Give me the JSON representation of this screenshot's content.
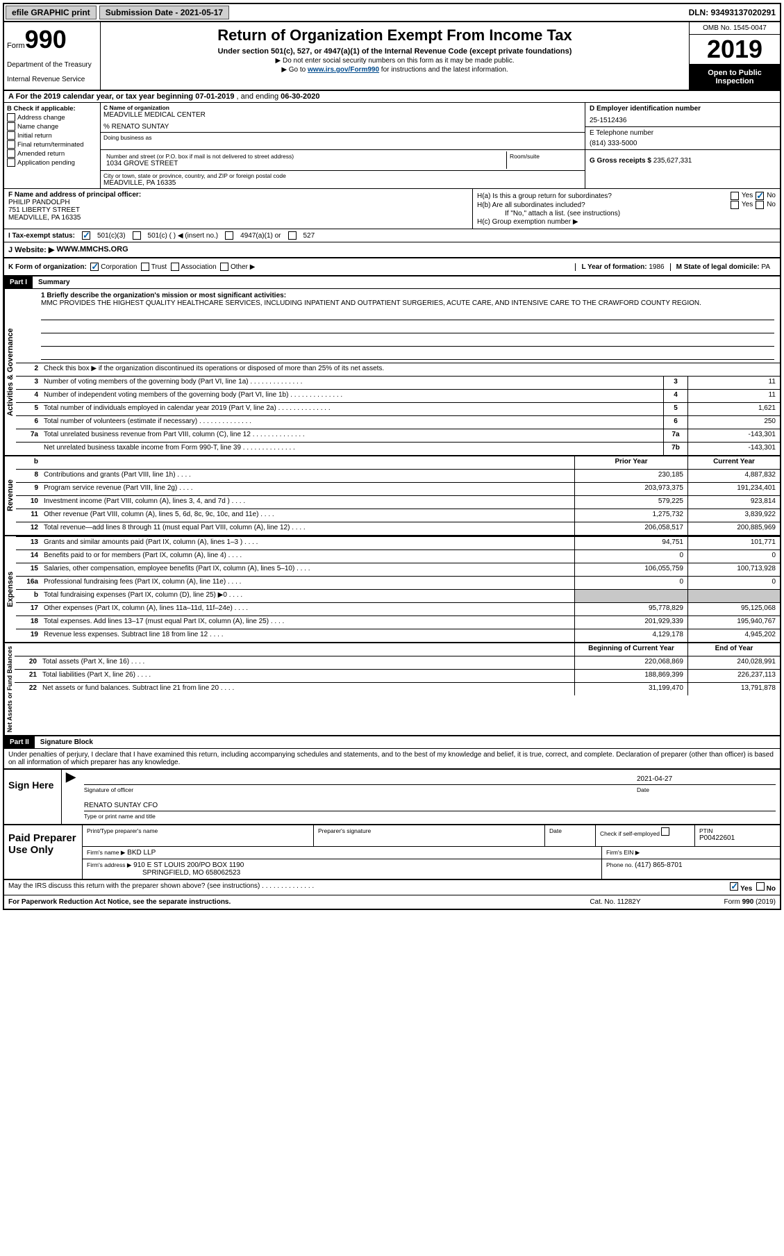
{
  "topbar": {
    "efile": "efile GRAPHIC print",
    "submission": "Submission Date - 2021-05-17",
    "dln": "DLN: 93493137020291"
  },
  "header": {
    "form_word": "Form",
    "form_num": "990",
    "dept1": "Department of the Treasury",
    "dept2": "Internal Revenue Service",
    "title": "Return of Organization Exempt From Income Tax",
    "subtitle": "Under section 501(c), 527, or 4947(a)(1) of the Internal Revenue Code (except private foundations)",
    "note1": "▶ Do not enter social security numbers on this form as it may be made public.",
    "note2_pre": "▶ Go to ",
    "note2_link": "www.irs.gov/Form990",
    "note2_post": " for instructions and the latest information.",
    "omb": "OMB No. 1545-0047",
    "year": "2019",
    "open": "Open to Public Inspection"
  },
  "rowA": {
    "label": "A For the 2019 calendar year, or tax year beginning ",
    "begin": "07-01-2019",
    "mid": " , and ending ",
    "end": "06-30-2020"
  },
  "checkB": {
    "label": "B Check if applicable:",
    "opts": [
      "Address change",
      "Name change",
      "Initial return",
      "Final return/terminated",
      "Amended return",
      "Application pending"
    ]
  },
  "sectionC": {
    "name_label": "C Name of organization",
    "name": "MEADVILLE MEDICAL CENTER",
    "care_of": "% RENATO SUNTAY",
    "dba_label": "Doing business as",
    "street_label": "Number and street (or P.O. box if mail is not delivered to street address)",
    "room_label": "Room/suite",
    "street": "1034 GROVE STREET",
    "city_label": "City or town, state or province, country, and ZIP or foreign postal code",
    "city": "MEADVILLE, PA  16335"
  },
  "sectionD": {
    "label": "D Employer identification number",
    "value": "25-1512436"
  },
  "sectionE": {
    "label": "E Telephone number",
    "value": "(814) 333-5000"
  },
  "sectionG": {
    "label": "G Gross receipts $ ",
    "value": "235,627,331"
  },
  "sectionF": {
    "label": "F  Name and address of principal officer:",
    "name": "PHILIP PANDOLPH",
    "street": "751 LIBERTY STREET",
    "city": "MEADVILLE, PA  16335"
  },
  "sectionH": {
    "a": "H(a)  Is this a group return for subordinates?",
    "b": "H(b)  Are all subordinates included?",
    "b_note": "If \"No,\" attach a list. (see instructions)",
    "c": "H(c)  Group exemption number ▶",
    "yes": "Yes",
    "no": "No"
  },
  "rowI": {
    "label": "I   Tax-exempt status:",
    "opt1": "501(c)(3)",
    "opt2": "501(c) (   ) ◀ (insert no.)",
    "opt3": "4947(a)(1) or",
    "opt4": "527"
  },
  "rowJ": {
    "label": "J   Website: ▶",
    "value": "WWW.MMCHS.ORG"
  },
  "rowK": {
    "label": "K Form of organization:",
    "opts": [
      "Corporation",
      "Trust",
      "Association",
      "Other ▶"
    ],
    "L_label": "L Year of formation: ",
    "L_val": "1986",
    "M_label": "M State of legal domicile: ",
    "M_val": "PA"
  },
  "part1": {
    "num": "Part I",
    "title": "Summary"
  },
  "mission": {
    "label": "1  Briefly describe the organization's mission or most significant activities:",
    "text": "MMC PROVIDES THE HIGHEST QUALITY HEALTHCARE SERVICES, INCLUDING INPATIENT AND OUTPATIENT SURGERIES, ACUTE CARE, AND INTENSIVE CARE TO THE CRAWFORD COUNTY REGION."
  },
  "line2": "Check this box ▶      if the organization discontinued its operations or disposed of more than 25% of its net assets.",
  "gov_lines": [
    {
      "n": "3",
      "d": "Number of voting members of the governing body (Part VI, line 1a)",
      "b": "3",
      "v": "11"
    },
    {
      "n": "4",
      "d": "Number of independent voting members of the governing body (Part VI, line 1b)",
      "b": "4",
      "v": "11"
    },
    {
      "n": "5",
      "d": "Total number of individuals employed in calendar year 2019 (Part V, line 2a)",
      "b": "5",
      "v": "1,621"
    },
    {
      "n": "6",
      "d": "Total number of volunteers (estimate if necessary)",
      "b": "6",
      "v": "250"
    },
    {
      "n": "7a",
      "d": "Total unrelated business revenue from Part VIII, column (C), line 12",
      "b": "7a",
      "v": "-143,301"
    },
    {
      "n": "",
      "d": "Net unrelated business taxable income from Form 990-T, line 39",
      "b": "7b",
      "v": "-143,301"
    }
  ],
  "col_headers": {
    "prior": "Prior Year",
    "current": "Current Year",
    "begin": "Beginning of Current Year",
    "end": "End of Year"
  },
  "rev_lines": [
    {
      "n": "8",
      "d": "Contributions and grants (Part VIII, line 1h)",
      "p": "230,185",
      "c": "4,887,832"
    },
    {
      "n": "9",
      "d": "Program service revenue (Part VIII, line 2g)",
      "p": "203,973,375",
      "c": "191,234,401"
    },
    {
      "n": "10",
      "d": "Investment income (Part VIII, column (A), lines 3, 4, and 7d )",
      "p": "579,225",
      "c": "923,814"
    },
    {
      "n": "11",
      "d": "Other revenue (Part VIII, column (A), lines 5, 6d, 8c, 9c, 10c, and 11e)",
      "p": "1,275,732",
      "c": "3,839,922"
    },
    {
      "n": "12",
      "d": "Total revenue—add lines 8 through 11 (must equal Part VIII, column (A), line 12)",
      "p": "206,058,517",
      "c": "200,885,969"
    }
  ],
  "exp_lines": [
    {
      "n": "13",
      "d": "Grants and similar amounts paid (Part IX, column (A), lines 1–3 )",
      "p": "94,751",
      "c": "101,771"
    },
    {
      "n": "14",
      "d": "Benefits paid to or for members (Part IX, column (A), line 4)",
      "p": "0",
      "c": "0"
    },
    {
      "n": "15",
      "d": "Salaries, other compensation, employee benefits (Part IX, column (A), lines 5–10)",
      "p": "106,055,759",
      "c": "100,713,928"
    },
    {
      "n": "16a",
      "d": "Professional fundraising fees (Part IX, column (A), line 11e)",
      "p": "0",
      "c": "0"
    },
    {
      "n": "b",
      "d": "Total fundraising expenses (Part IX, column (D), line 25) ▶0",
      "p": "",
      "c": "",
      "gray": true
    },
    {
      "n": "17",
      "d": "Other expenses (Part IX, column (A), lines 11a–11d, 11f–24e)",
      "p": "95,778,829",
      "c": "95,125,068"
    },
    {
      "n": "18",
      "d": "Total expenses. Add lines 13–17 (must equal Part IX, column (A), line 25)",
      "p": "201,929,339",
      "c": "195,940,767"
    },
    {
      "n": "19",
      "d": "Revenue less expenses. Subtract line 18 from line 12",
      "p": "4,129,178",
      "c": "4,945,202"
    }
  ],
  "net_lines": [
    {
      "n": "20",
      "d": "Total assets (Part X, line 16)",
      "p": "220,068,869",
      "c": "240,028,991"
    },
    {
      "n": "21",
      "d": "Total liabilities (Part X, line 26)",
      "p": "188,869,399",
      "c": "226,237,113"
    },
    {
      "n": "22",
      "d": "Net assets or fund balances. Subtract line 21 from line 20",
      "p": "31,199,470",
      "c": "13,791,878"
    }
  ],
  "side_labels": {
    "gov": "Activities & Governance",
    "rev": "Revenue",
    "exp": "Expenses",
    "net": "Net Assets or Fund Balances"
  },
  "part2": {
    "num": "Part II",
    "title": "Signature Block"
  },
  "declaration": "Under penalties of perjury, I declare that I have examined this return, including accompanying schedules and statements, and to the best of my knowledge and belief, it is true, correct, and complete. Declaration of preparer (other than officer) is based on all information of which preparer has any knowledge.",
  "sign": {
    "here": "Sign Here",
    "sig_officer": "Signature of officer",
    "date": "2021-04-27",
    "date_label": "Date",
    "name": "RENATO SUNTAY CFO",
    "name_label": "Type or print name and title"
  },
  "paid": {
    "title": "Paid Preparer Use Only",
    "print_label": "Print/Type preparer's name",
    "sig_label": "Preparer's signature",
    "date_label": "Date",
    "check_label": "Check       if self-employed",
    "ptin_label": "PTIN",
    "ptin": "P00422601",
    "firm_name_label": "Firm's name    ▶",
    "firm_name": "BKD LLP",
    "firm_ein_label": "Firm's EIN ▶",
    "firm_addr_label": "Firm's address ▶",
    "firm_addr1": "910 E ST LOUIS 200/PO BOX 1190",
    "firm_addr2": "SPRINGFIELD, MO  658062523",
    "phone_label": "Phone no. ",
    "phone": "(417) 865-8701"
  },
  "discuss": {
    "text": "May the IRS discuss this return with the preparer shown above? (see instructions)",
    "yes": "Yes",
    "no": "No"
  },
  "footer": {
    "left": "For Paperwork Reduction Act Notice, see the separate instructions.",
    "mid": "Cat. No. 11282Y",
    "right": "Form 990 (2019)"
  }
}
